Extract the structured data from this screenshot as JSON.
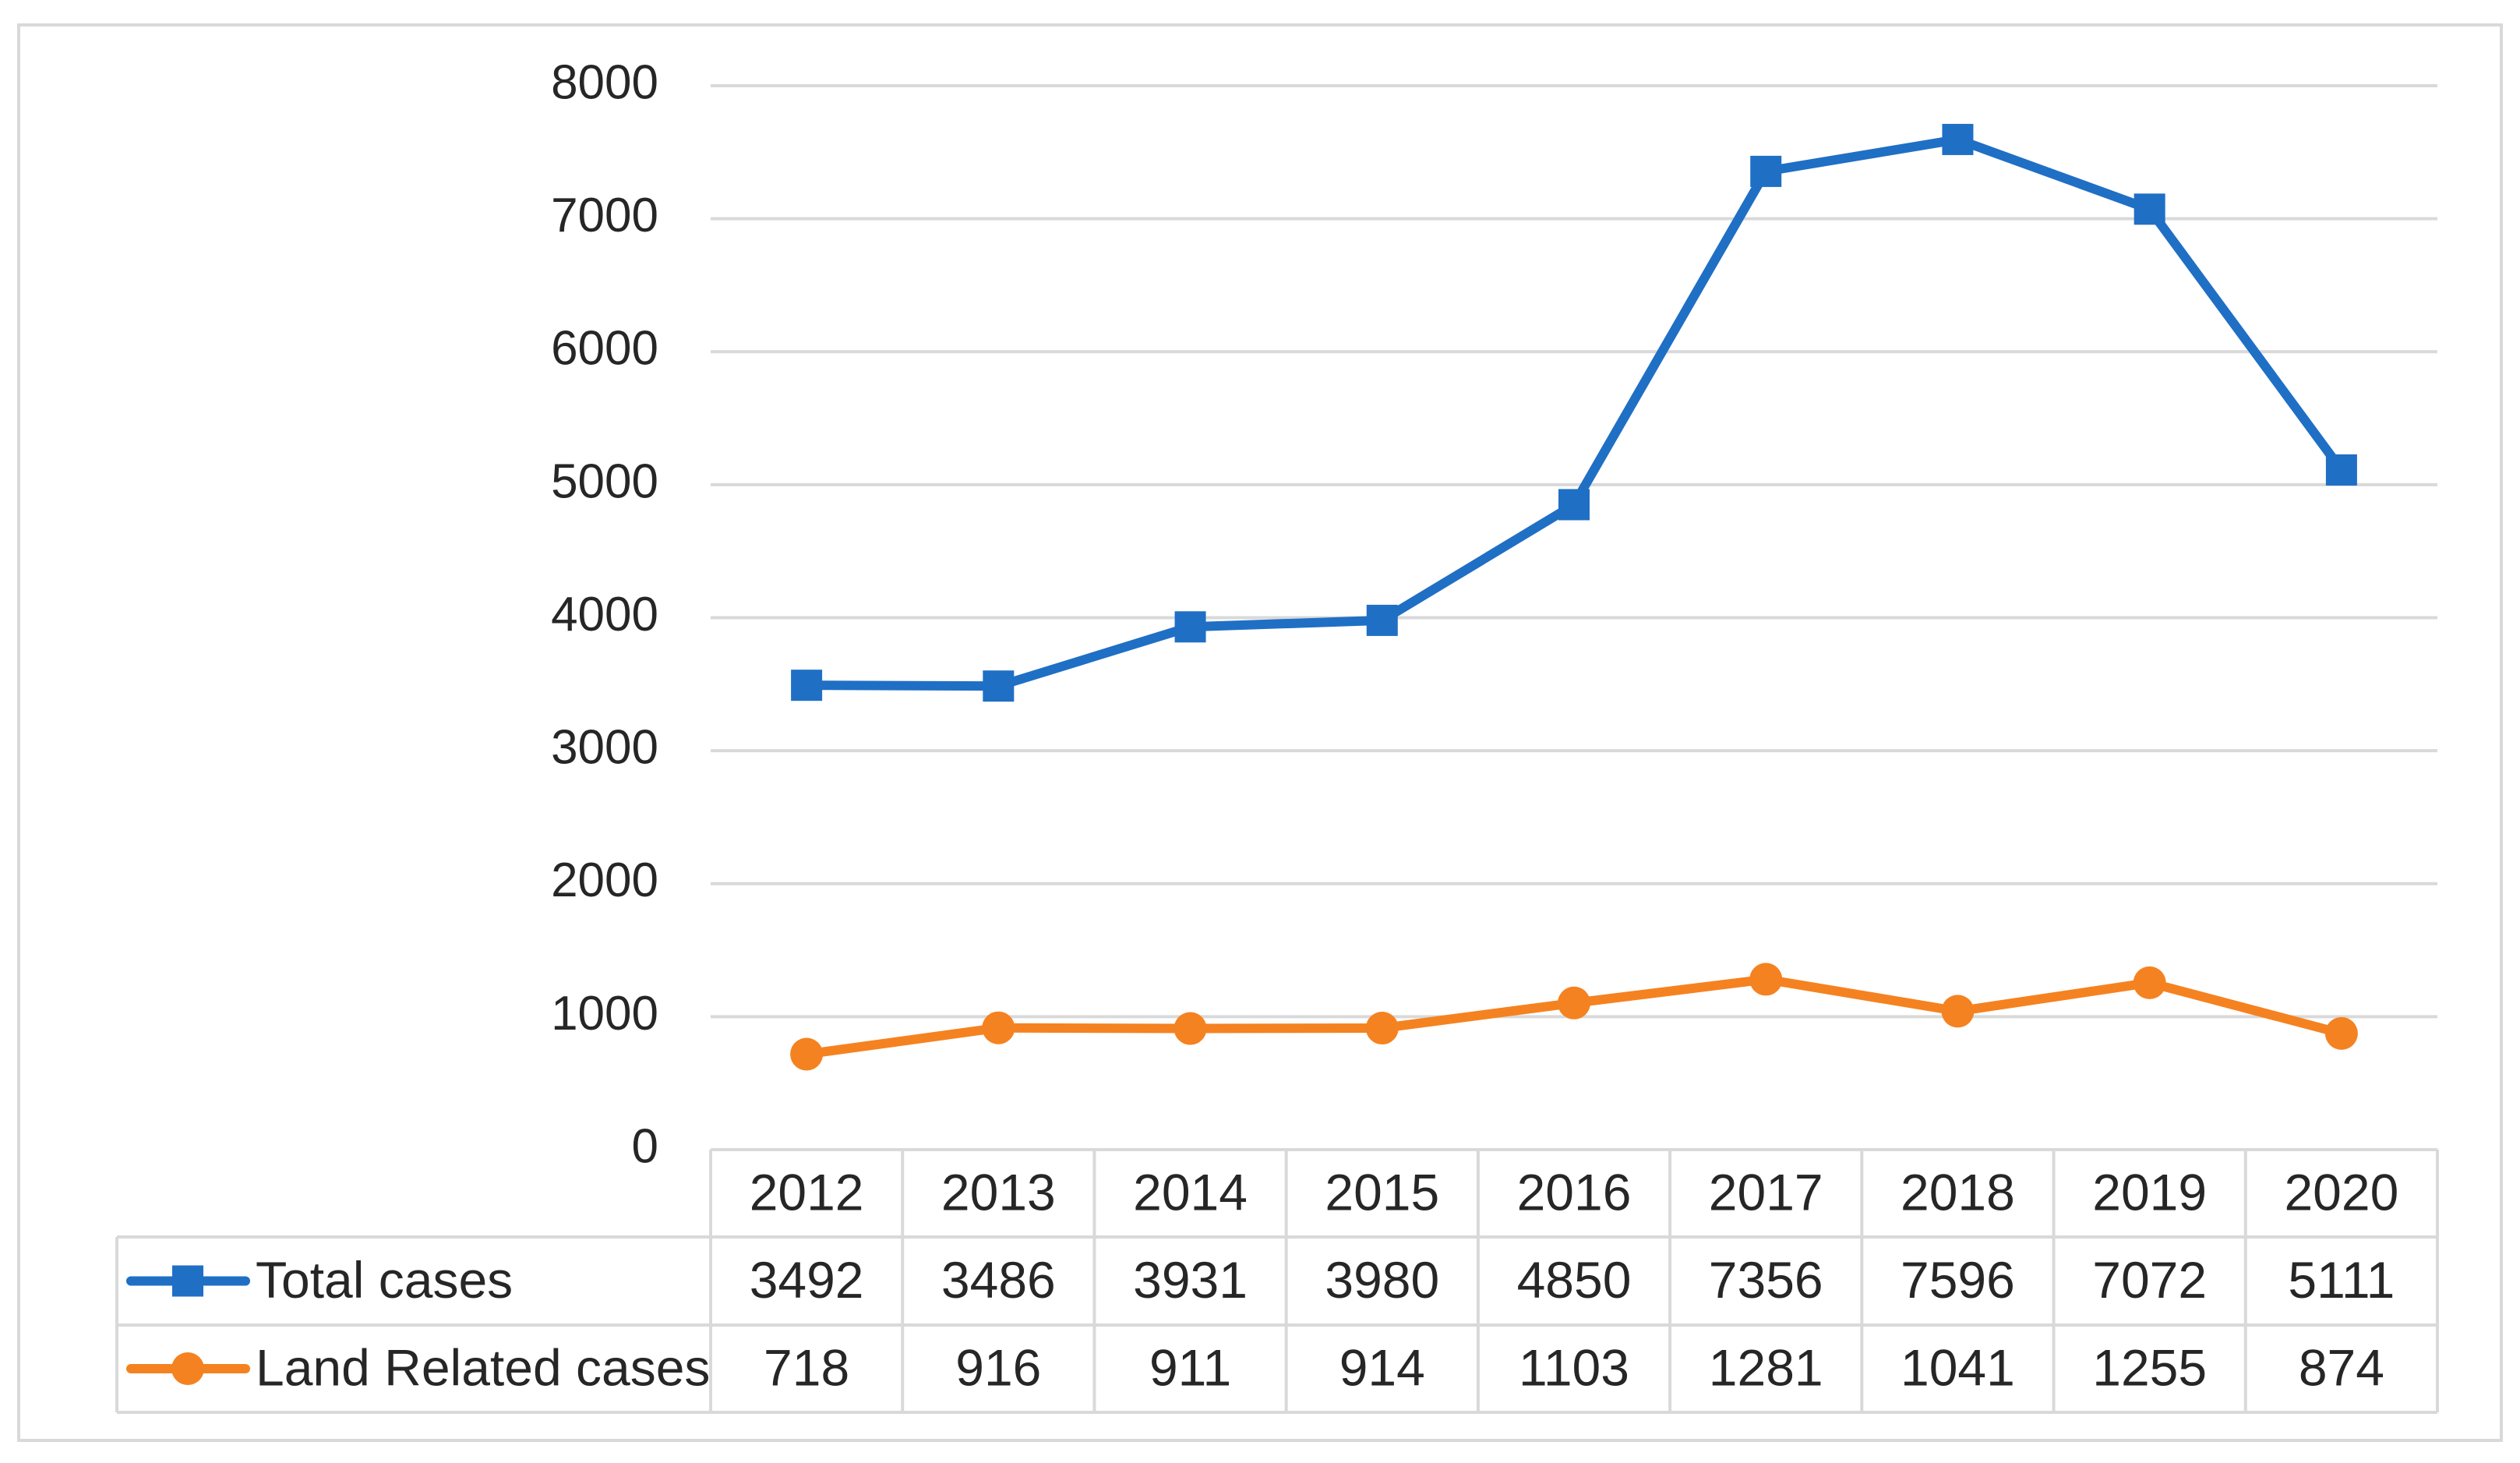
{
  "chart_data": {
    "type": "line",
    "categories": [
      "2012",
      "2013",
      "2014",
      "2015",
      "2016",
      "2017",
      "2018",
      "2019",
      "2020"
    ],
    "series": [
      {
        "name": "Total cases",
        "values": [
          3492,
          3486,
          3931,
          3980,
          4850,
          7356,
          7596,
          7072,
          5111
        ],
        "color": "#1f6fc5",
        "marker": "square"
      },
      {
        "name": "Land Related cases",
        "values": [
          718,
          916,
          911,
          914,
          1103,
          1281,
          1041,
          1255,
          874
        ],
        "color": "#f58220",
        "marker": "circle"
      }
    ],
    "ylim": [
      0,
      8000
    ],
    "yticks": [
      "0",
      "1000",
      "2000",
      "3000",
      "4000",
      "5000",
      "6000",
      "7000",
      "8000"
    ],
    "data_table": true,
    "grid": true,
    "legend": "in data table"
  }
}
